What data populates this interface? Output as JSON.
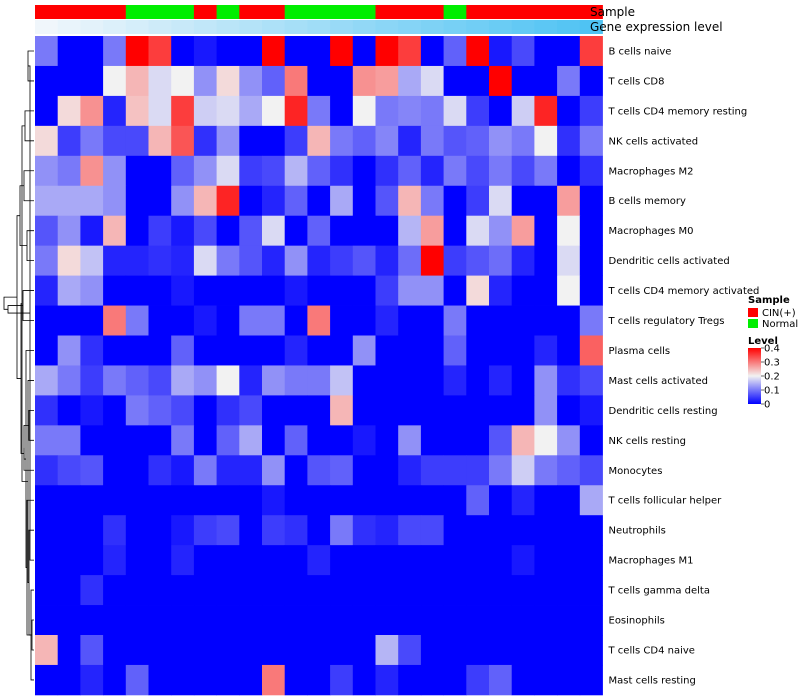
{
  "chart_data": {
    "type": "heatmap",
    "title": "",
    "annotation_tracks": [
      "Sample",
      "Gene expression level"
    ],
    "sample_groups": [
      "CIN(+)",
      "CIN(+)",
      "CIN(+)",
      "CIN(+)",
      "Normal",
      "Normal",
      "Normal",
      "CIN(+)",
      "Normal",
      "CIN(+)",
      "CIN(+)",
      "Normal",
      "Normal",
      "Normal",
      "Normal",
      "CIN(+)",
      "CIN(+)",
      "CIN(+)",
      "Normal",
      "CIN(+)",
      "CIN(+)",
      "CIN(+)",
      "CIN(+)",
      "CIN(+)",
      "CIN(+)"
    ],
    "expression_level": [
      0.02,
      0.04,
      0.06,
      0.08,
      0.1,
      0.12,
      0.14,
      0.16,
      0.18,
      0.2,
      0.22,
      0.24,
      0.26,
      0.28,
      0.3,
      0.32,
      0.34,
      0.36,
      0.38,
      0.4,
      0.42,
      0.44,
      0.46,
      0.48,
      0.5
    ],
    "rows": [
      "B cells naive",
      "T cells CD8",
      "T cells CD4 memory resting",
      "NK cells activated",
      "Macrophages M2",
      "B cells memory",
      "Macrophages M0",
      "Dendritic cells activated",
      "T cells CD4 memory activated",
      "T cells regulatory  Tregs",
      "Plasma cells",
      "Mast cells activated",
      "Dendritic cells resting",
      "NK cells resting",
      "Monocytes",
      "T cells follicular helper",
      "Neutrophils",
      "Macrophages M1",
      "T cells gamma delta",
      "Eosinophils",
      "T cells CD4 naive",
      "Mast cells resting"
    ],
    "values": [
      [
        0.1,
        0,
        0,
        0.1,
        0.4,
        0.35,
        0,
        0.02,
        0,
        0,
        0.4,
        0,
        0,
        0.4,
        0,
        0.4,
        0.35,
        0,
        0.08,
        0.4,
        0.02,
        0.06,
        0,
        0,
        0.35
      ],
      [
        0,
        0,
        0,
        0.2,
        0.25,
        0.18,
        0.2,
        0.12,
        0.22,
        0.12,
        0.08,
        0.3,
        0,
        0,
        0.28,
        0.27,
        0.14,
        0.18,
        0,
        0,
        0.4,
        0,
        0,
        0.1,
        0
      ],
      [
        0,
        0.22,
        0.28,
        0.03,
        0.24,
        0.18,
        0.35,
        0.17,
        0.18,
        0.14,
        0.2,
        0.37,
        0.1,
        0,
        0.2,
        0.1,
        0.11,
        0.1,
        0.18,
        0.05,
        0,
        0.17,
        0.37,
        0,
        0.05
      ],
      [
        0.22,
        0.05,
        0.1,
        0.06,
        0.06,
        0.25,
        0.33,
        0.04,
        0.12,
        0,
        0,
        0.05,
        0.25,
        0.1,
        0.08,
        0.11,
        0.03,
        0.1,
        0.07,
        0.08,
        0.12,
        0.1,
        0.2,
        0.04,
        0.1
      ],
      [
        0.12,
        0.1,
        0.28,
        0.12,
        0,
        0,
        0.08,
        0.12,
        0.18,
        0.05,
        0.06,
        0.15,
        0.08,
        0.04,
        0,
        0.04,
        0.08,
        0.03,
        0.1,
        0.06,
        0.1,
        0.06,
        0.1,
        0,
        0.04
      ],
      [
        0.14,
        0.14,
        0.14,
        0.12,
        0,
        0,
        0.12,
        0.25,
        0.37,
        0,
        0.03,
        0.08,
        0,
        0.14,
        0,
        0.07,
        0.25,
        0.1,
        0,
        0.05,
        0.18,
        0,
        0,
        0.27,
        0
      ],
      [
        0.07,
        0.12,
        0.02,
        0.25,
        0,
        0.05,
        0.02,
        0.06,
        0,
        0.07,
        0.18,
        0,
        0.08,
        0,
        0,
        0,
        0.15,
        0.27,
        0,
        0.18,
        0.12,
        0.27,
        0,
        0.2,
        0
      ],
      [
        0.1,
        0.22,
        0.16,
        0.03,
        0.03,
        0.04,
        0.03,
        0.18,
        0.1,
        0.07,
        0.03,
        0.12,
        0.03,
        0.05,
        0.07,
        0.03,
        0.09,
        0.4,
        0.05,
        0.07,
        0.09,
        0.03,
        0,
        0.18,
        0
      ],
      [
        0.03,
        0.14,
        0.12,
        0,
        0,
        0,
        0.02,
        0,
        0,
        0,
        0,
        0.02,
        0,
        0,
        0,
        0.05,
        0.12,
        0.12,
        0,
        0.22,
        0.03,
        0,
        0,
        0.2,
        0
      ],
      [
        0,
        0,
        0,
        0.3,
        0.1,
        0,
        0,
        0.02,
        0,
        0.1,
        0.1,
        0,
        0.3,
        0,
        0,
        0.03,
        0,
        0,
        0.1,
        0,
        0,
        0,
        0,
        0,
        0.1
      ],
      [
        0,
        0.12,
        0.04,
        0,
        0,
        0,
        0.08,
        0,
        0,
        0,
        0,
        0.03,
        0,
        0,
        0.12,
        0,
        0,
        0,
        0.08,
        0,
        0,
        0,
        0.03,
        0,
        0.32
      ],
      [
        0.14,
        0.1,
        0.05,
        0.1,
        0.08,
        0.06,
        0.14,
        0.12,
        0.2,
        0.03,
        0.12,
        0.1,
        0.1,
        0.16,
        0,
        0,
        0,
        0,
        0.03,
        0,
        0.03,
        0,
        0.12,
        0.04,
        0.06
      ],
      [
        0.04,
        0,
        0.02,
        0,
        0.1,
        0.08,
        0.06,
        0,
        0.04,
        0.06,
        0,
        0,
        0,
        0.25,
        0,
        0,
        0,
        0,
        0,
        0,
        0,
        0,
        0.12,
        0,
        0.02
      ],
      [
        0.1,
        0.1,
        0,
        0,
        0,
        0,
        0.1,
        0,
        0.08,
        0.14,
        0,
        0.08,
        0,
        0,
        0.02,
        0,
        0.12,
        0,
        0,
        0,
        0.07,
        0.25,
        0.2,
        0.12,
        0
      ],
      [
        0.04,
        0.06,
        0.07,
        0,
        0,
        0.04,
        0.02,
        0.1,
        0.03,
        0.03,
        0.12,
        0,
        0.07,
        0.08,
        0,
        0,
        0.03,
        0.05,
        0.05,
        0.05,
        0.1,
        0.17,
        0.1,
        0.08,
        0.06
      ],
      [
        0,
        0,
        0,
        0,
        0,
        0,
        0,
        0,
        0,
        0,
        0.02,
        0,
        0,
        0,
        0,
        0,
        0,
        0,
        0,
        0.08,
        0,
        0.03,
        0,
        0,
        0.14
      ],
      [
        0,
        0,
        0,
        0.04,
        0,
        0,
        0.02,
        0.05,
        0.06,
        0,
        0.05,
        0.04,
        0,
        0.1,
        0.04,
        0.03,
        0.06,
        0.06,
        0,
        0,
        0,
        0,
        0,
        0,
        0
      ],
      [
        0,
        0,
        0,
        0.03,
        0,
        0,
        0.03,
        0,
        0,
        0,
        0,
        0,
        0.03,
        0,
        0,
        0,
        0,
        0,
        0,
        0,
        0,
        0.02,
        0,
        0,
        0
      ],
      [
        0,
        0,
        0.04,
        0,
        0,
        0,
        0,
        0,
        0,
        0,
        0,
        0,
        0,
        0,
        0,
        0,
        0,
        0,
        0,
        0,
        0,
        0,
        0,
        0,
        0
      ],
      [
        0,
        0,
        0,
        0,
        0,
        0,
        0,
        0,
        0,
        0,
        0,
        0,
        0,
        0,
        0,
        0,
        0,
        0,
        0,
        0,
        0,
        0,
        0,
        0,
        0
      ],
      [
        0.25,
        0,
        0.07,
        0,
        0,
        0,
        0,
        0,
        0,
        0,
        0,
        0,
        0,
        0,
        0,
        0.15,
        0.06,
        0,
        0,
        0,
        0,
        0,
        0,
        0,
        0
      ],
      [
        0,
        0,
        0.03,
        0,
        0.08,
        0,
        0,
        0,
        0,
        0,
        0.3,
        0,
        0,
        0.05,
        0,
        0.03,
        0,
        0,
        0,
        0.05,
        0.08,
        0,
        0,
        0,
        0
      ]
    ],
    "color_scale": {
      "min": 0,
      "max": 0.4,
      "low": "#0000ff",
      "mid": "#f2f2f2",
      "high": "#ff0000"
    },
    "legends": {
      "sample_title": "Sample",
      "sample_items": [
        {
          "label": "CIN(+)",
          "color": "#ff0000"
        },
        {
          "label": "Normal",
          "color": "#00ee00"
        }
      ],
      "level_title": "Level",
      "level_ticks": [
        "0.4",
        "0.3",
        "0.2",
        "0.1",
        "0"
      ],
      "level_tick_values": [
        0.4,
        0.3,
        0.2,
        0.1,
        0
      ]
    },
    "gene_level_color_low": "#f0f6fb",
    "gene_level_color_high": "#4fc3f3"
  }
}
